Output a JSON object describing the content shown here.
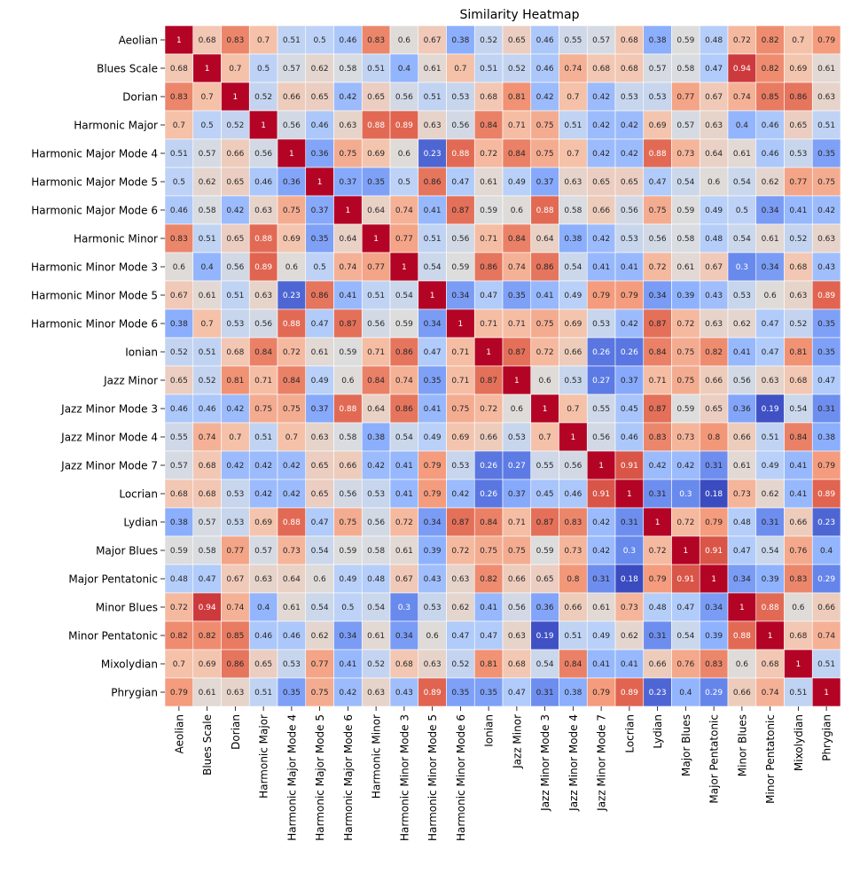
{
  "chart_data": {
    "type": "heatmap",
    "title": "Similarity Heatmap",
    "xlabel": "",
    "ylabel": "",
    "colormap": "coolwarm",
    "value_range": [
      0.18,
      1
    ],
    "grid": true,
    "legend": "none",
    "labels": [
      "Aeolian",
      "Blues Scale",
      "Dorian",
      "Harmonic Major",
      "Harmonic Major Mode 4",
      "Harmonic Major Mode 5",
      "Harmonic Major Mode 6",
      "Harmonic Minor",
      "Harmonic Minor Mode 3",
      "Harmonic Minor Mode 5",
      "Harmonic Minor Mode 6",
      "Ionian",
      "Jazz Minor",
      "Jazz Minor Mode 3",
      "Jazz Minor Mode 4",
      "Jazz Minor Mode 7",
      "Locrian",
      "Lydian",
      "Major Blues",
      "Major Pentatonic",
      "Minor Blues",
      "Minor Pentatonic",
      "Mixolydian",
      "Phrygian"
    ],
    "matrix": [
      [
        "1",
        "0.68",
        "0.83",
        "0.7",
        "0.51",
        "0.5",
        "0.46",
        "0.83",
        "0.6",
        "0.67",
        "0.38",
        "0.52",
        "0.65",
        "0.46",
        "0.55",
        "0.57",
        "0.68",
        "0.38",
        "0.59",
        "0.48",
        "0.72",
        "0.82",
        "0.7",
        "0.79"
      ],
      [
        "0.68",
        "1",
        "0.7",
        "0.5",
        "0.57",
        "0.62",
        "0.58",
        "0.51",
        "0.4",
        "0.61",
        "0.7",
        "0.51",
        "0.52",
        "0.46",
        "0.74",
        "0.68",
        "0.68",
        "0.57",
        "0.58",
        "0.47",
        "0.94",
        "0.82",
        "0.69",
        "0.61"
      ],
      [
        "0.83",
        "0.7",
        "1",
        "0.52",
        "0.66",
        "0.65",
        "0.42",
        "0.65",
        "0.56",
        "0.51",
        "0.53",
        "0.68",
        "0.81",
        "0.42",
        "0.7",
        "0.42",
        "0.53",
        "0.53",
        "0.77",
        "0.67",
        "0.74",
        "0.85",
        "0.86",
        "0.63"
      ],
      [
        "0.7",
        "0.5",
        "0.52",
        "1",
        "0.56",
        "0.46",
        "0.63",
        "0.88",
        "0.89",
        "0.63",
        "0.56",
        "0.84",
        "0.71",
        "0.75",
        "0.51",
        "0.42",
        "0.42",
        "0.69",
        "0.57",
        "0.63",
        "0.4",
        "0.46",
        "0.65",
        "0.51"
      ],
      [
        "0.51",
        "0.57",
        "0.66",
        "0.56",
        "1",
        "0.36",
        "0.75",
        "0.69",
        "0.6",
        "0.23",
        "0.88",
        "0.72",
        "0.84",
        "0.75",
        "0.7",
        "0.42",
        "0.42",
        "0.88",
        "0.73",
        "0.64",
        "0.61",
        "0.46",
        "0.53",
        "0.35"
      ],
      [
        "0.5",
        "0.62",
        "0.65",
        "0.46",
        "0.36",
        "1",
        "0.37",
        "0.35",
        "0.5",
        "0.86",
        "0.47",
        "0.61",
        "0.49",
        "0.37",
        "0.63",
        "0.65",
        "0.65",
        "0.47",
        "0.54",
        "0.6",
        "0.54",
        "0.62",
        "0.77",
        "0.75"
      ],
      [
        "0.46",
        "0.58",
        "0.42",
        "0.63",
        "0.75",
        "0.37",
        "1",
        "0.64",
        "0.74",
        "0.41",
        "0.87",
        "0.59",
        "0.6",
        "0.88",
        "0.58",
        "0.66",
        "0.56",
        "0.75",
        "0.59",
        "0.49",
        "0.5",
        "0.34",
        "0.41",
        "0.42"
      ],
      [
        "0.83",
        "0.51",
        "0.65",
        "0.88",
        "0.69",
        "0.35",
        "0.64",
        "1",
        "0.77",
        "0.51",
        "0.56",
        "0.71",
        "0.84",
        "0.64",
        "0.38",
        "0.42",
        "0.53",
        "0.56",
        "0.58",
        "0.48",
        "0.54",
        "0.61",
        "0.52",
        "0.63"
      ],
      [
        "0.6",
        "0.4",
        "0.56",
        "0.89",
        "0.6",
        "0.5",
        "0.74",
        "0.77",
        "1",
        "0.54",
        "0.59",
        "0.86",
        "0.74",
        "0.86",
        "0.54",
        "0.41",
        "0.41",
        "0.72",
        "0.61",
        "0.67",
        "0.3",
        "0.34",
        "0.68",
        "0.43"
      ],
      [
        "0.67",
        "0.61",
        "0.51",
        "0.63",
        "0.23",
        "0.86",
        "0.41",
        "0.51",
        "0.54",
        "1",
        "0.34",
        "0.47",
        "0.35",
        "0.41",
        "0.49",
        "0.79",
        "0.79",
        "0.34",
        "0.39",
        "0.43",
        "0.53",
        "0.6",
        "0.63",
        "0.89"
      ],
      [
        "0.38",
        "0.7",
        "0.53",
        "0.56",
        "0.88",
        "0.47",
        "0.87",
        "0.56",
        "0.59",
        "0.34",
        "1",
        "0.71",
        "0.71",
        "0.75",
        "0.69",
        "0.53",
        "0.42",
        "0.87",
        "0.72",
        "0.63",
        "0.62",
        "0.47",
        "0.52",
        "0.35"
      ],
      [
        "0.52",
        "0.51",
        "0.68",
        "0.84",
        "0.72",
        "0.61",
        "0.59",
        "0.71",
        "0.86",
        "0.47",
        "0.71",
        "1",
        "0.87",
        "0.72",
        "0.66",
        "0.26",
        "0.26",
        "0.84",
        "0.75",
        "0.82",
        "0.41",
        "0.47",
        "0.81",
        "0.35"
      ],
      [
        "0.65",
        "0.52",
        "0.81",
        "0.71",
        "0.84",
        "0.49",
        "0.6",
        "0.84",
        "0.74",
        "0.35",
        "0.71",
        "0.87",
        "1",
        "0.6",
        "0.53",
        "0.27",
        "0.37",
        "0.71",
        "0.75",
        "0.66",
        "0.56",
        "0.63",
        "0.68",
        "0.47"
      ],
      [
        "0.46",
        "0.46",
        "0.42",
        "0.75",
        "0.75",
        "0.37",
        "0.88",
        "0.64",
        "0.86",
        "0.41",
        "0.75",
        "0.72",
        "0.6",
        "1",
        "0.7",
        "0.55",
        "0.45",
        "0.87",
        "0.59",
        "0.65",
        "0.36",
        "0.19",
        "0.54",
        "0.31"
      ],
      [
        "0.55",
        "0.74",
        "0.7",
        "0.51",
        "0.7",
        "0.63",
        "0.58",
        "0.38",
        "0.54",
        "0.49",
        "0.69",
        "0.66",
        "0.53",
        "0.7",
        "1",
        "0.56",
        "0.46",
        "0.83",
        "0.73",
        "0.8",
        "0.66",
        "0.51",
        "0.84",
        "0.38"
      ],
      [
        "0.57",
        "0.68",
        "0.42",
        "0.42",
        "0.42",
        "0.65",
        "0.66",
        "0.42",
        "0.41",
        "0.79",
        "0.53",
        "0.26",
        "0.27",
        "0.55",
        "0.56",
        "1",
        "0.91",
        "0.42",
        "0.42",
        "0.31",
        "0.61",
        "0.49",
        "0.41",
        "0.79"
      ],
      [
        "0.68",
        "0.68",
        "0.53",
        "0.42",
        "0.42",
        "0.65",
        "0.56",
        "0.53",
        "0.41",
        "0.79",
        "0.42",
        "0.26",
        "0.37",
        "0.45",
        "0.46",
        "0.91",
        "1",
        "0.31",
        "0.3",
        "0.18",
        "0.73",
        "0.62",
        "0.41",
        "0.89"
      ],
      [
        "0.38",
        "0.57",
        "0.53",
        "0.69",
        "0.88",
        "0.47",
        "0.75",
        "0.56",
        "0.72",
        "0.34",
        "0.87",
        "0.84",
        "0.71",
        "0.87",
        "0.83",
        "0.42",
        "0.31",
        "1",
        "0.72",
        "0.79",
        "0.48",
        "0.31",
        "0.66",
        "0.23"
      ],
      [
        "0.59",
        "0.58",
        "0.77",
        "0.57",
        "0.73",
        "0.54",
        "0.59",
        "0.58",
        "0.61",
        "0.39",
        "0.72",
        "0.75",
        "0.75",
        "0.59",
        "0.73",
        "0.42",
        "0.3",
        "0.72",
        "1",
        "0.91",
        "0.47",
        "0.54",
        "0.76",
        "0.4"
      ],
      [
        "0.48",
        "0.47",
        "0.67",
        "0.63",
        "0.64",
        "0.6",
        "0.49",
        "0.48",
        "0.67",
        "0.43",
        "0.63",
        "0.82",
        "0.66",
        "0.65",
        "0.8",
        "0.31",
        "0.18",
        "0.79",
        "0.91",
        "1",
        "0.34",
        "0.39",
        "0.83",
        "0.29"
      ],
      [
        "0.72",
        "0.94",
        "0.74",
        "0.4",
        "0.61",
        "0.54",
        "0.5",
        "0.54",
        "0.3",
        "0.53",
        "0.62",
        "0.41",
        "0.56",
        "0.36",
        "0.66",
        "0.61",
        "0.73",
        "0.48",
        "0.47",
        "0.34",
        "1",
        "0.88",
        "0.6",
        "0.66"
      ],
      [
        "0.82",
        "0.82",
        "0.85",
        "0.46",
        "0.46",
        "0.62",
        "0.34",
        "0.61",
        "0.34",
        "0.6",
        "0.47",
        "0.47",
        "0.63",
        "0.19",
        "0.51",
        "0.49",
        "0.62",
        "0.31",
        "0.54",
        "0.39",
        "0.88",
        "1",
        "0.68",
        "0.74"
      ],
      [
        "0.7",
        "0.69",
        "0.86",
        "0.65",
        "0.53",
        "0.77",
        "0.41",
        "0.52",
        "0.68",
        "0.63",
        "0.52",
        "0.81",
        "0.68",
        "0.54",
        "0.84",
        "0.41",
        "0.41",
        "0.66",
        "0.76",
        "0.83",
        "0.6",
        "0.68",
        "1",
        "0.51"
      ],
      [
        "0.79",
        "0.61",
        "0.63",
        "0.51",
        "0.35",
        "0.75",
        "0.42",
        "0.63",
        "0.43",
        "0.89",
        "0.35",
        "0.35",
        "0.47",
        "0.31",
        "0.38",
        "0.79",
        "0.89",
        "0.23",
        "0.4",
        "0.29",
        "0.66",
        "0.74",
        "0.51",
        "1"
      ]
    ]
  }
}
